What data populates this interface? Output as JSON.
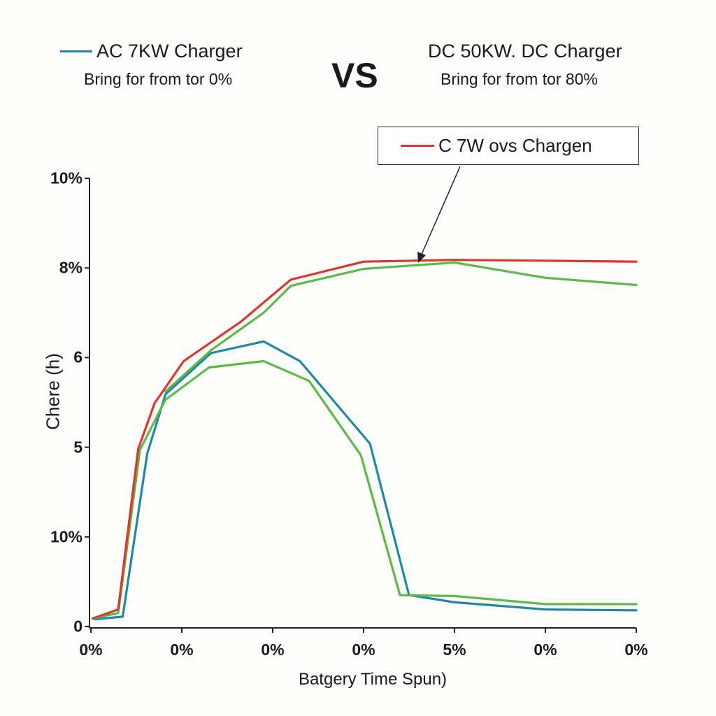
{
  "header": {
    "left_title": "AC 7KW Charger",
    "left_subtitle": "Bring for from tor 0%",
    "vs": "VS",
    "right_title": "DC 50KW. DC Charger",
    "right_subtitle": "Bring for from tor 80%"
  },
  "callout": {
    "text": "C 7W οvs Chargen"
  },
  "colors": {
    "blue": "#1f87a8",
    "green": "#5db94a",
    "red": "#d9392c",
    "axis": "#222222"
  },
  "chart_data": {
    "type": "line",
    "title": "",
    "xlabel": "Batgery Time Spun)",
    "ylabel": "Chere (h)",
    "y_tick_labels": [
      "0",
      "10%",
      "5",
      "6",
      "8%",
      "10%"
    ],
    "x_tick_labels": [
      "0%",
      "0%",
      "0%",
      "0%",
      "5%",
      "0%",
      "0%"
    ],
    "x_range": [
      0,
      6
    ],
    "y_range": [
      0,
      5
    ],
    "series": [
      {
        "name": "AC 7KW Charger",
        "color": "blue",
        "points": [
          [
            0.02,
            0.09
          ],
          [
            0.05,
            0.08
          ],
          [
            0.35,
            0.11
          ],
          [
            0.62,
            1.93
          ],
          [
            0.82,
            2.59
          ],
          [
            1.32,
            3.05
          ],
          [
            1.9,
            3.18
          ],
          [
            2.3,
            2.96
          ],
          [
            3.07,
            2.04
          ],
          [
            3.5,
            0.35
          ],
          [
            4.0,
            0.27
          ],
          [
            5.0,
            0.19
          ],
          [
            6.0,
            0.18
          ]
        ]
      },
      {
        "name": "",
        "color": "green",
        "points": [
          [
            0.02,
            0.09
          ],
          [
            0.3,
            0.15
          ],
          [
            0.54,
            1.97
          ],
          [
            0.82,
            2.53
          ],
          [
            1.3,
            2.89
          ],
          [
            1.9,
            2.96
          ],
          [
            2.4,
            2.74
          ],
          [
            2.97,
            1.91
          ],
          [
            3.4,
            0.35
          ],
          [
            4.0,
            0.34
          ],
          [
            5.0,
            0.25
          ],
          [
            6.0,
            0.25
          ]
        ]
      },
      {
        "name": "",
        "color": "green",
        "points": [
          [
            0.82,
            2.62
          ],
          [
            1.32,
            3.08
          ],
          [
            1.9,
            3.5
          ],
          [
            2.2,
            3.8
          ],
          [
            3.0,
            3.99
          ],
          [
            4.0,
            4.06
          ],
          [
            5.0,
            3.89
          ],
          [
            6.0,
            3.81
          ]
        ]
      },
      {
        "name": "C 7W οvs Chargen",
        "color": "red",
        "points": [
          [
            0.02,
            0.09
          ],
          [
            0.3,
            0.19
          ],
          [
            0.52,
            1.98
          ],
          [
            0.7,
            2.49
          ],
          [
            1.02,
            2.96
          ],
          [
            1.65,
            3.4
          ],
          [
            2.2,
            3.87
          ],
          [
            3.0,
            4.07
          ],
          [
            4.0,
            4.09
          ],
          [
            5.0,
            4.08
          ],
          [
            6.0,
            4.07
          ]
        ]
      }
    ]
  }
}
